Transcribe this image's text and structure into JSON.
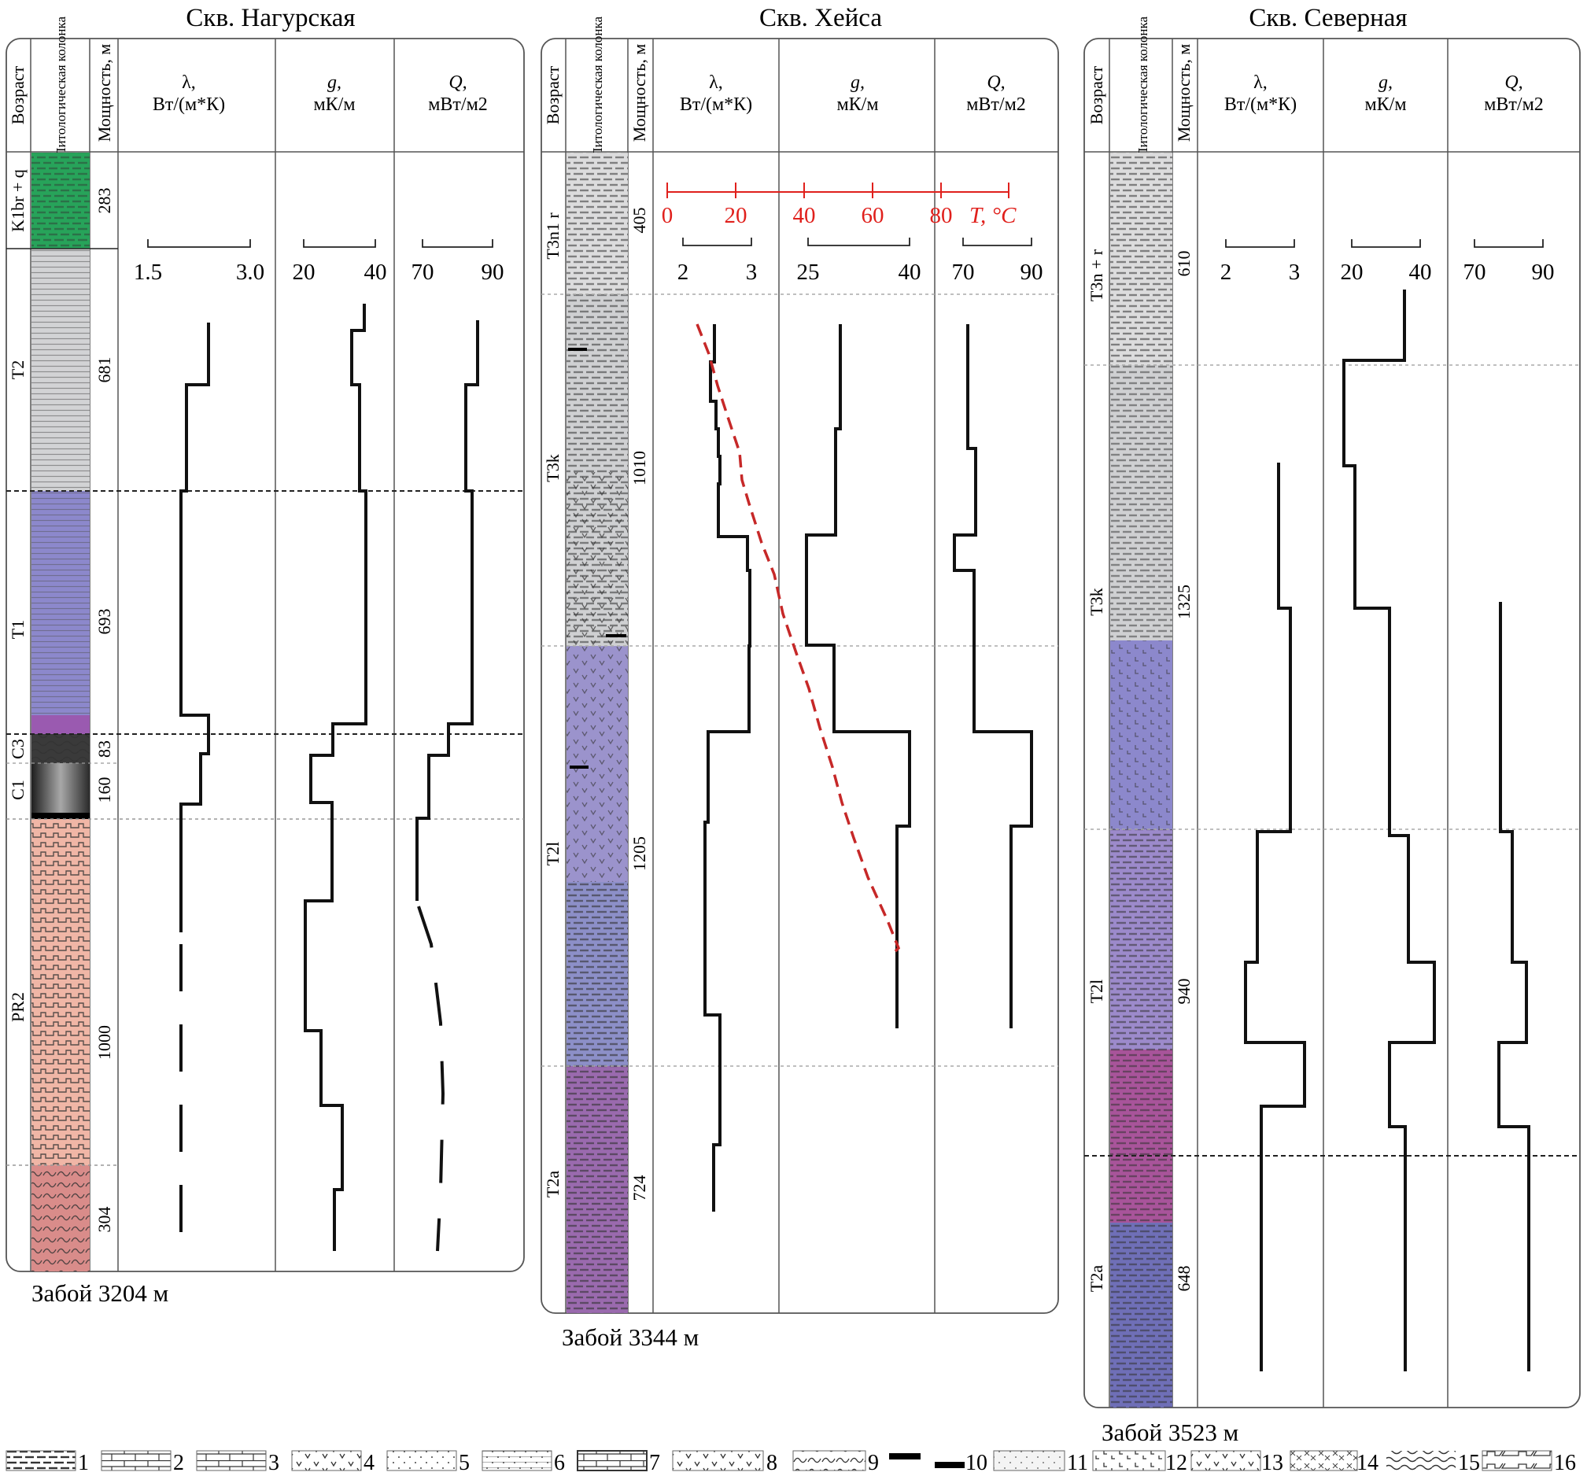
{
  "wells": [
    {
      "title": "Скв. Нагурская",
      "headers": {
        "age": "Возраст",
        "lith": "Литологическая колонка",
        "thick": "Мощность, м",
        "lambda": [
          "λ,",
          "Вт/(м*К)"
        ],
        "g": [
          "g,",
          "мК/м"
        ],
        "q": [
          "Q,",
          "мВт/м2"
        ]
      },
      "scales": {
        "lambda": [
          "1.5",
          "3.0"
        ],
        "g": [
          "20",
          "40"
        ],
        "q": [
          "70",
          "90"
        ]
      },
      "layers": [
        {
          "age": "K1br + q",
          "thickness": "283"
        },
        {
          "age": "T2",
          "thickness": "681"
        },
        {
          "age": "T1",
          "thickness": "693"
        },
        {
          "age": "C3",
          "thickness": "83"
        },
        {
          "age": "C1",
          "thickness": "160"
        },
        {
          "age": "PR2",
          "thickness": "1000"
        },
        {
          "age": "",
          "thickness": "304"
        }
      ],
      "bottom_label": "Забой 3204 м"
    },
    {
      "title": "Скв. Хейса",
      "headers": {
        "age": "Возраст",
        "lith": "Литологическая колонка",
        "thick": "Мощность, м",
        "lambda": [
          "λ,",
          "Вт/(м*К)"
        ],
        "g": [
          "g,",
          "мК/м"
        ],
        "q": [
          "Q,",
          "мВт/м2"
        ]
      },
      "scales": {
        "lambda": [
          "2",
          "3"
        ],
        "g": [
          "25",
          "40"
        ],
        "q": [
          "70",
          "90"
        ]
      },
      "temperature_scale": {
        "ticks": [
          "0",
          "20",
          "40",
          "60",
          "80"
        ],
        "label": "T, °C",
        "color": "#e0201c"
      },
      "layers": [
        {
          "age": "T3n1 r",
          "thickness": "405"
        },
        {
          "age": "T3k",
          "thickness": "1010"
        },
        {
          "age": "T2l",
          "thickness": "1205"
        },
        {
          "age": "T2a",
          "thickness": "724"
        }
      ],
      "bottom_label": "Забой 3344 м"
    },
    {
      "title": "Скв. Северная",
      "headers": {
        "age": "Возраст",
        "lith": "Литологическая колонка",
        "thick": "Мощность, м",
        "lambda": [
          "λ,",
          "Вт/(м*К)"
        ],
        "g": [
          "g,",
          "мК/м"
        ],
        "q": [
          "Q,",
          "мВт/м2"
        ]
      },
      "scales": {
        "lambda": [
          "2",
          "3"
        ],
        "g": [
          "20",
          "40"
        ],
        "q": [
          "70",
          "90"
        ]
      },
      "layers": [
        {
          "age": "T3n + r",
          "thickness": "610"
        },
        {
          "age": "T3k",
          "thickness": "1325"
        },
        {
          "age": "T2l",
          "thickness": "940"
        },
        {
          "age": "T2a",
          "thickness": "648"
        }
      ],
      "bottom_label": "Забой 3523 м"
    }
  ],
  "legend": [
    "1",
    "2",
    "3",
    "4",
    "5",
    "6",
    "7",
    "8",
    "9",
    "10",
    "11",
    "12",
    "13",
    "14",
    "15",
    "16"
  ],
  "colors": {
    "green": "#27a35a",
    "gray": "#cfd0d2",
    "violet": "#8c88cc",
    "magenta": "#a8549a",
    "salmon": "#f0b6a6",
    "pink": "#d98c8a",
    "dark": "#606060",
    "temperature": "#c62828"
  }
}
